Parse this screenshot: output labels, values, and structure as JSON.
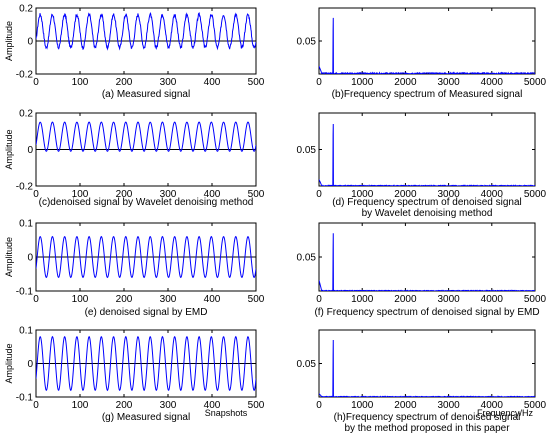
{
  "chart_data": [
    {
      "type": "line",
      "ylabel": "Amplitude",
      "xlabel": "",
      "caption": "(a)  Measured signal",
      "xlim": [
        0,
        500
      ],
      "ylim": [
        -0.2,
        0.2
      ],
      "xticks": [
        "0",
        "100",
        "200",
        "300",
        "400",
        "500"
      ],
      "yticks": [
        "0.2",
        "0",
        "-0.2"
      ],
      "wave": {
        "offset": 0.06,
        "amplitude": 0.1,
        "cycles": 18,
        "noise": 0.02,
        "drawZeroLine": true
      }
    },
    {
      "type": "line",
      "ylabel": "",
      "xlabel": "",
      "caption": "(b)Frequency spectrum of Measured signal",
      "xlim": [
        0,
        5000
      ],
      "ylim": [
        0,
        0.1
      ],
      "xticks": [
        "0",
        "1000",
        "2000",
        "3000",
        "4000",
        "5000"
      ],
      "yticks": [
        "0.05"
      ],
      "spectrum": {
        "peak_freq": 330,
        "peak_value": 0.085,
        "secondary_value": 0.065,
        "dc_value": 0.01,
        "noise_floor": 0.002
      }
    },
    {
      "type": "line",
      "ylabel": "Amplitude",
      "xlabel": "",
      "caption": "(c)denoised signal by Wavelet denoising method",
      "xlim": [
        0,
        500
      ],
      "ylim": [
        -0.2,
        0.2
      ],
      "xticks": [
        "0",
        "100",
        "200",
        "300",
        "400",
        "500"
      ],
      "yticks": [
        "0.2",
        "0",
        "-0.2"
      ],
      "wave": {
        "offset": 0.07,
        "amplitude": 0.08,
        "cycles": 18,
        "noise": 0.0,
        "drawZeroLine": true
      }
    },
    {
      "type": "line",
      "ylabel": "",
      "xlabel": "",
      "caption": [
        "(d)  Frequency  spectrum  of denoised signal",
        "by Wavelet denoising method"
      ],
      "xlim": [
        0,
        5000
      ],
      "ylim": [
        0,
        0.1
      ],
      "xticks": [
        "0",
        "1000",
        "2000",
        "3000",
        "4000",
        "5000"
      ],
      "yticks": [
        "0.05"
      ],
      "spectrum": {
        "peak_freq": 330,
        "peak_value": 0.085,
        "secondary_value": 0.07,
        "dc_value": 0.008,
        "noise_floor": 0.001
      }
    },
    {
      "type": "line",
      "ylabel": "Amplitude",
      "xlabel": "",
      "caption": "(e)  denoised signal by EMD",
      "xlim": [
        0,
        500
      ],
      "ylim": [
        -0.1,
        0.1
      ],
      "xticks": [
        "0",
        "100",
        "200",
        "300",
        "400",
        "500"
      ],
      "yticks": [
        "0.1",
        "0",
        "-0.1"
      ],
      "wave": {
        "offset": 0.0,
        "amplitude": 0.06,
        "cycles": 18,
        "noise": 0.0,
        "drawZeroLine": true
      }
    },
    {
      "type": "line",
      "ylabel": "",
      "xlabel": "",
      "caption": "(f)  Frequency  spectrum  of denoised signal by   EMD",
      "xlim": [
        0,
        5000
      ],
      "ylim": [
        0,
        0.1
      ],
      "xticks": [
        "0",
        "1000",
        "2000",
        "3000",
        "4000",
        "5000"
      ],
      "yticks": [
        "0.05"
      ],
      "spectrum": {
        "peak_freq": 330,
        "peak_value": 0.085,
        "secondary_value": 0.06,
        "dc_value": 0.015,
        "noise_floor": 0.001
      }
    },
    {
      "type": "line",
      "ylabel": "Amplitude",
      "xlabel": "Snapshots",
      "caption": "(g)  Measured signal",
      "xlim": [
        0,
        500
      ],
      "ylim": [
        -0.1,
        0.1
      ],
      "xticks": [
        "0",
        "100",
        "200",
        "300",
        "400",
        "500"
      ],
      "yticks": [
        "0.1",
        "0",
        "-0.1"
      ],
      "wave": {
        "offset": 0.0,
        "amplitude": 0.08,
        "cycles": 18,
        "noise": 0.0,
        "drawZeroLine": true
      }
    },
    {
      "type": "line",
      "ylabel": "",
      "xlabel": "Frequency/Hz",
      "caption": [
        "(h)Frequency  spectrum  of denoised signal",
        "by the method proposed in this paper"
      ],
      "xlim": [
        0,
        5000
      ],
      "ylim": [
        0,
        0.1
      ],
      "xticks": [
        "0",
        "1000",
        "2000",
        "3000",
        "4000",
        "5000"
      ],
      "yticks": [
        "0.05"
      ],
      "spectrum": {
        "peak_freq": 330,
        "peak_value": 0.085,
        "secondary_value": 0.06,
        "dc_value": 0.004,
        "noise_floor": 0.001
      }
    }
  ],
  "colors": {
    "line": "#0000ff",
    "axis": "#000000",
    "zero": "#000000"
  }
}
